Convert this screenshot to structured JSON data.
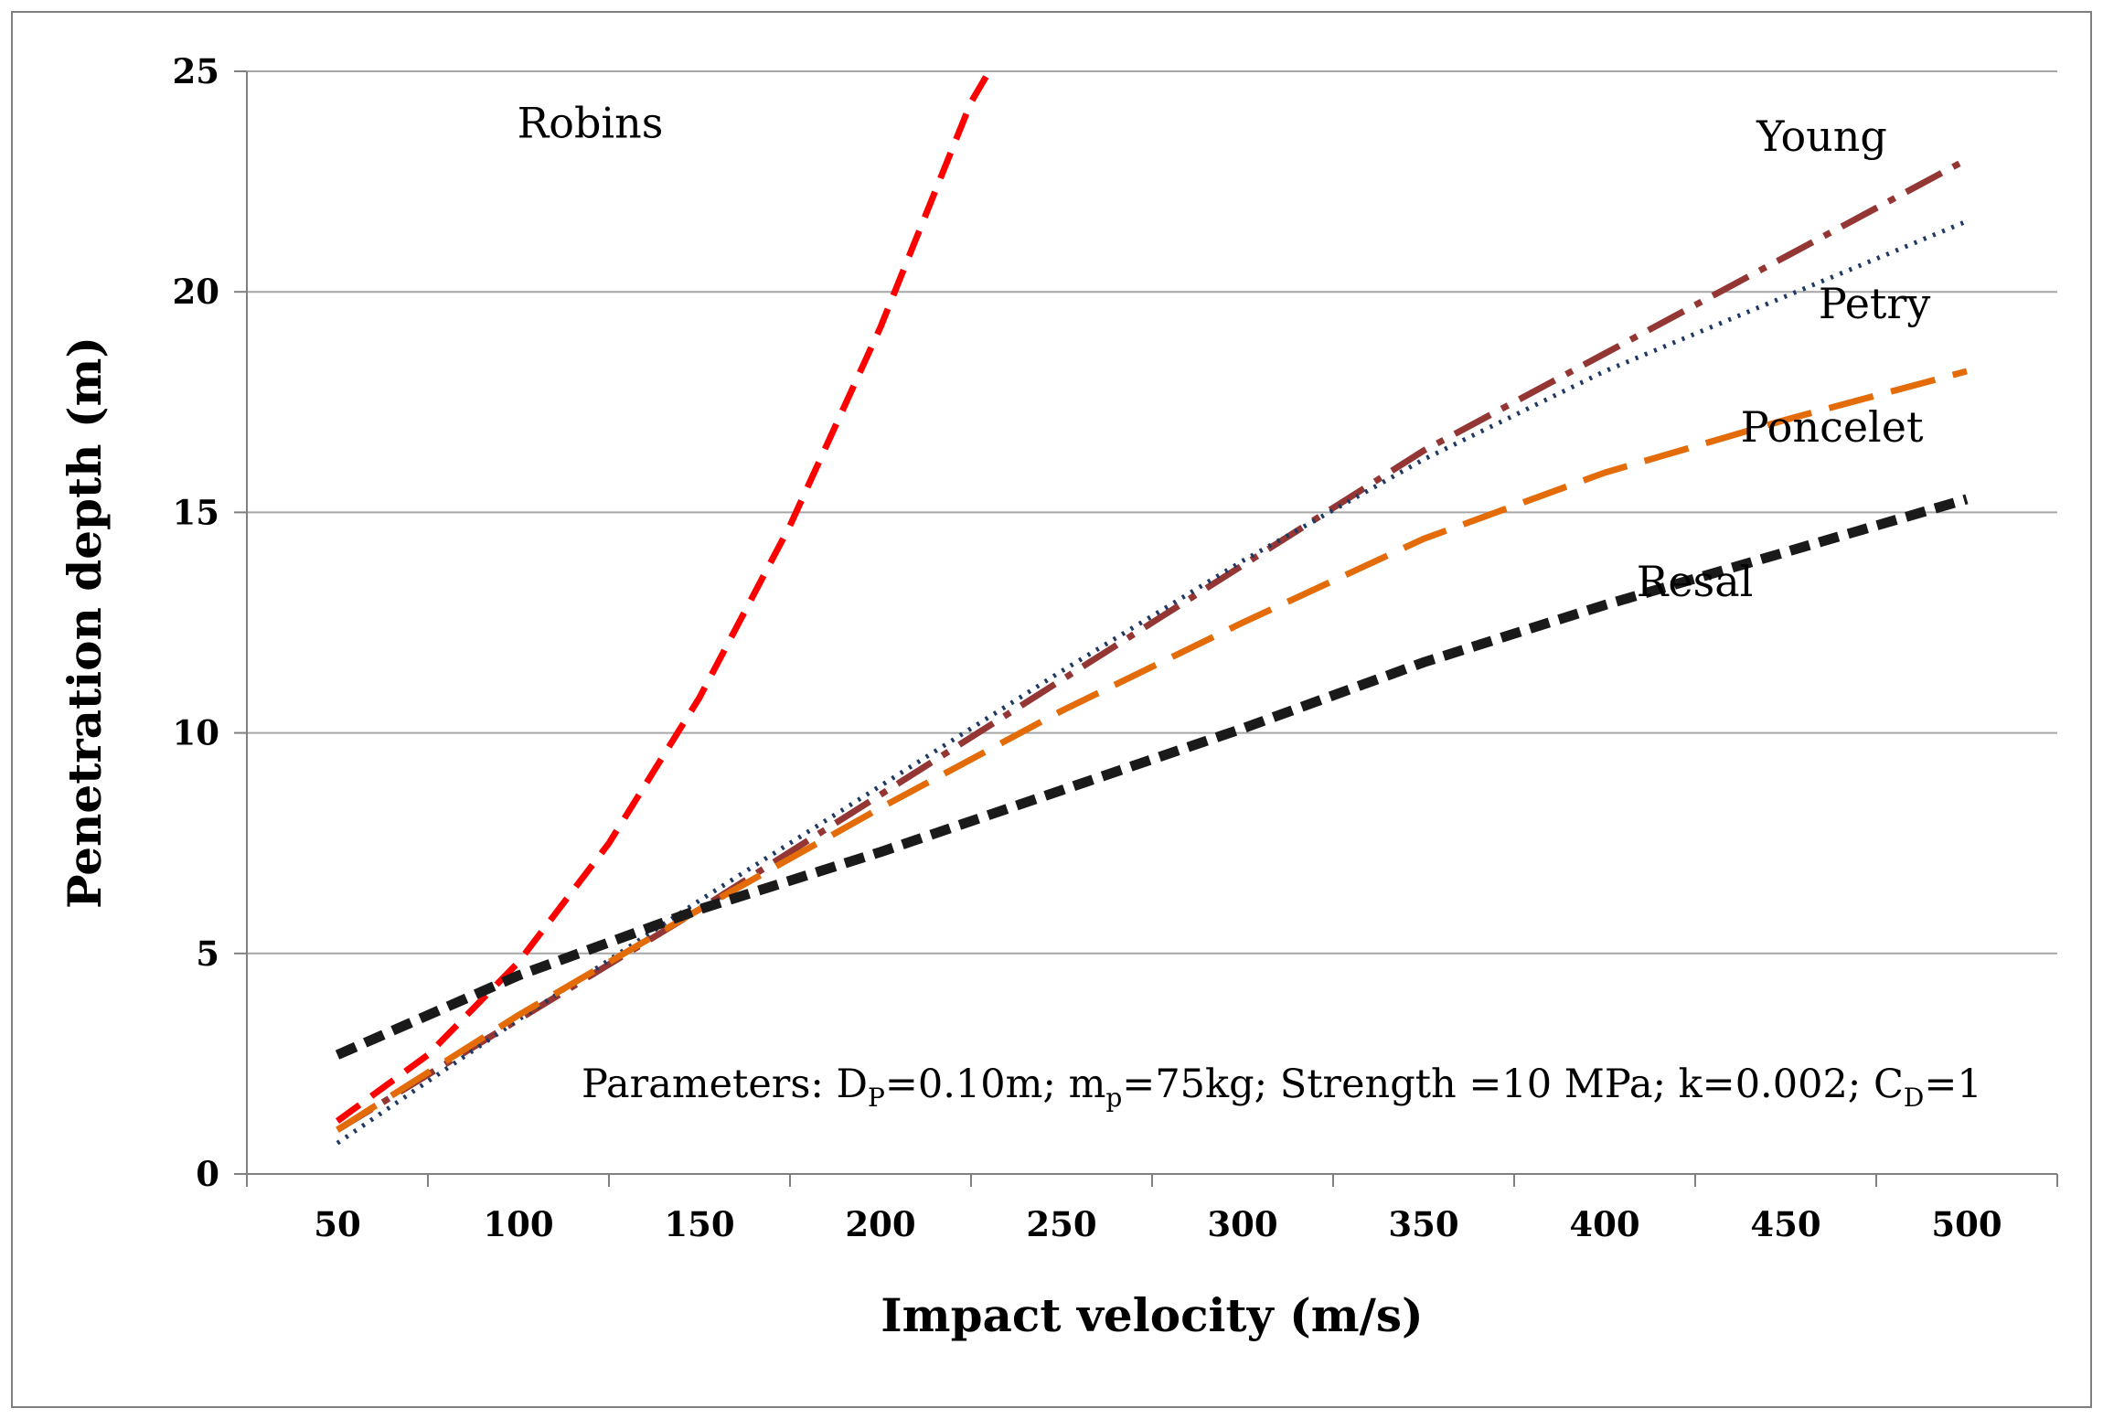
{
  "chart_data": {
    "type": "line",
    "title": "",
    "xlabel": "Impact velocity (m/s)",
    "ylabel": "Penetration depth (m)",
    "xlim": [
      25,
      525
    ],
    "ylim": [
      0,
      25
    ],
    "xticks": [
      50,
      100,
      150,
      200,
      250,
      300,
      350,
      400,
      450,
      500
    ],
    "yticks": [
      0,
      5,
      10,
      15,
      20,
      25
    ],
    "grid": "horizontal",
    "annotation": {
      "parts": [
        {
          "text": "Parameters: D",
          "sub": false
        },
        {
          "text": "P",
          "sub": true
        },
        {
          "text": "=0.10m; m",
          "sub": false
        },
        {
          "text": "p",
          "sub": true
        },
        {
          "text": "=75kg;  Strength =10 MPa; k=0.002; C",
          "sub": false
        },
        {
          "text": "D",
          "sub": true
        },
        {
          "text": "=1",
          "sub": false
        }
      ]
    },
    "series": [
      {
        "name": "Robins",
        "color": "#ff0000",
        "dash": "dashed",
        "x": [
          50,
          75,
          100,
          125,
          150,
          175,
          200,
          225,
          230
        ],
        "y": [
          1.2,
          2.7,
          4.8,
          7.5,
          10.8,
          14.7,
          19.2,
          24.3,
          25.0
        ],
        "label_pos": [
          140,
          23.5
        ]
      },
      {
        "name": "Young",
        "color": "#943634",
        "dash": "dashdot",
        "x": [
          50,
          100,
          150,
          200,
          250,
          300,
          350,
          400,
          450,
          500
        ],
        "y": [
          1.0,
          3.5,
          6.0,
          8.6,
          11.2,
          13.8,
          16.4,
          18.6,
          20.8,
          23.0
        ],
        "label_pos": [
          478,
          23.2
        ]
      },
      {
        "name": "Petry",
        "color": "#1f3864",
        "dash": "dotted",
        "x": [
          50,
          100,
          150,
          200,
          250,
          300,
          350,
          400,
          450,
          500
        ],
        "y": [
          0.7,
          3.5,
          6.2,
          8.8,
          11.4,
          13.9,
          16.2,
          18.2,
          19.9,
          21.6
        ],
        "label_pos": [
          490,
          19.4
        ]
      },
      {
        "name": "Poncelet",
        "color": "#e36c09",
        "dash": "longdash",
        "x": [
          50,
          100,
          150,
          200,
          250,
          300,
          350,
          400,
          450,
          500
        ],
        "y": [
          1.0,
          3.6,
          6.0,
          8.3,
          10.5,
          12.5,
          14.4,
          15.9,
          17.1,
          18.2
        ],
        "label_pos": [
          488,
          16.6
        ]
      },
      {
        "name": "Resal",
        "color": "#1a1a1a",
        "dash": "shortdash",
        "x": [
          50,
          100,
          150,
          200,
          250,
          300,
          350,
          400,
          450,
          500
        ],
        "y": [
          2.7,
          4.5,
          6.0,
          7.3,
          8.7,
          10.1,
          11.6,
          12.9,
          14.1,
          15.3
        ],
        "label_pos": [
          441,
          13.1
        ]
      }
    ]
  }
}
